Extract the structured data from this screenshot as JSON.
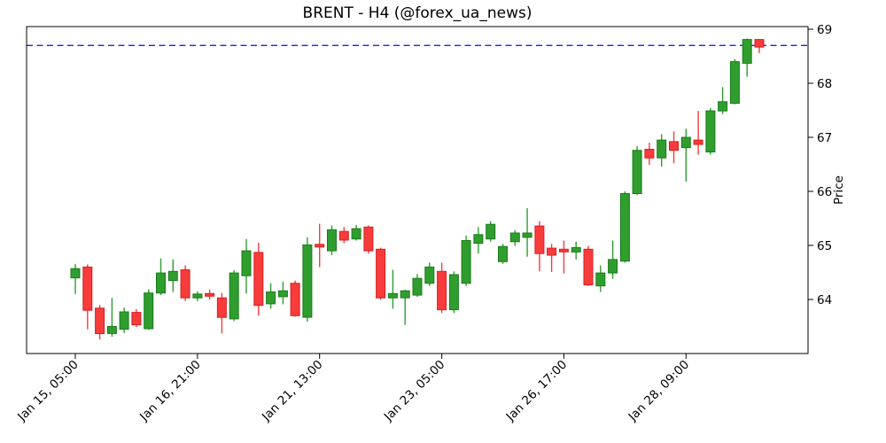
{
  "title": "BRENT - H4 (@forex_ua_news)",
  "chart_data": {
    "type": "candlestick",
    "title": "BRENT - H4 (@forex_ua_news)",
    "ylabel": "Price",
    "ylabel_side": "right",
    "ylim": [
      63.0,
      69.05
    ],
    "yticks": [
      64,
      65,
      66,
      67,
      68,
      69
    ],
    "grid": false,
    "hline": 68.7,
    "hline_style": "dashed",
    "xticks": [
      {
        "index": 0,
        "label": "Jan 15, 05:00"
      },
      {
        "index": 10,
        "label": "Jan 16, 21:00"
      },
      {
        "index": 20,
        "label": "Jan 21, 13:00"
      },
      {
        "index": 30,
        "label": "Jan 23, 05:00"
      },
      {
        "index": 40,
        "label": "Jan 26, 17:00"
      },
      {
        "index": 50,
        "label": "Jan 28, 09:00"
      }
    ],
    "colors": {
      "up": "#2f9e2f",
      "up_edge": "#1a7a1a",
      "down": "#f83b3b",
      "down_edge": "#d32222",
      "hline": "#1f1fff",
      "axis": "#000000",
      "background": "#ffffff"
    },
    "ohlc_order": [
      "open",
      "high",
      "low",
      "close"
    ],
    "candles": [
      [
        64.4,
        64.66,
        64.1,
        64.57
      ],
      [
        64.6,
        64.65,
        63.45,
        63.8
      ],
      [
        63.84,
        63.9,
        63.26,
        63.37
      ],
      [
        63.37,
        64.03,
        63.31,
        63.5
      ],
      [
        63.45,
        63.85,
        63.38,
        63.77
      ],
      [
        63.76,
        63.82,
        63.49,
        63.53
      ],
      [
        63.46,
        64.19,
        63.44,
        64.12
      ],
      [
        64.12,
        64.76,
        64.08,
        64.49
      ],
      [
        64.35,
        64.74,
        64.14,
        64.52
      ],
      [
        64.55,
        64.63,
        63.97,
        64.03
      ],
      [
        64.03,
        64.15,
        63.97,
        64.1
      ],
      [
        64.11,
        64.18,
        64.0,
        64.06
      ],
      [
        64.03,
        64.12,
        63.37,
        63.67
      ],
      [
        63.64,
        64.54,
        63.6,
        64.49
      ],
      [
        64.44,
        65.12,
        64.11,
        64.9
      ],
      [
        64.87,
        65.05,
        63.7,
        63.89
      ],
      [
        63.92,
        64.3,
        63.83,
        64.14
      ],
      [
        64.05,
        64.33,
        63.91,
        64.16
      ],
      [
        64.3,
        64.35,
        63.68,
        63.7
      ],
      [
        63.67,
        65.15,
        63.59,
        65.01
      ],
      [
        65.02,
        65.4,
        64.6,
        64.97
      ],
      [
        64.9,
        65.37,
        64.82,
        65.29
      ],
      [
        65.26,
        65.34,
        65.04,
        65.1
      ],
      [
        65.12,
        65.38,
        65.09,
        65.31
      ],
      [
        65.34,
        65.37,
        64.85,
        64.9
      ],
      [
        64.93,
        64.96,
        64.0,
        64.03
      ],
      [
        64.03,
        64.55,
        63.83,
        64.11
      ],
      [
        64.03,
        64.18,
        63.53,
        64.16
      ],
      [
        64.08,
        64.47,
        64.05,
        64.39
      ],
      [
        64.3,
        64.68,
        64.25,
        64.6
      ],
      [
        64.52,
        64.68,
        63.75,
        63.81
      ],
      [
        63.81,
        64.52,
        63.75,
        64.46
      ],
      [
        64.3,
        65.18,
        64.25,
        65.09
      ],
      [
        65.04,
        65.34,
        64.85,
        65.2
      ],
      [
        65.12,
        65.45,
        65.07,
        65.39
      ],
      [
        64.7,
        65.03,
        64.66,
        64.98
      ],
      [
        65.07,
        65.28,
        64.99,
        65.23
      ],
      [
        65.15,
        65.69,
        64.79,
        65.23
      ],
      [
        65.36,
        65.45,
        64.52,
        64.85
      ],
      [
        64.95,
        65.03,
        64.51,
        64.82
      ],
      [
        64.93,
        65.09,
        64.48,
        64.88
      ],
      [
        64.88,
        65.07,
        64.74,
        64.96
      ],
      [
        64.93,
        64.99,
        64.25,
        64.27
      ],
      [
        64.25,
        64.63,
        64.14,
        64.49
      ],
      [
        64.49,
        65.09,
        64.38,
        64.74
      ],
      [
        64.71,
        66.0,
        64.68,
        65.96
      ],
      [
        65.96,
        66.84,
        65.93,
        66.76
      ],
      [
        66.78,
        66.9,
        66.49,
        66.62
      ],
      [
        66.62,
        67.06,
        66.46,
        66.95
      ],
      [
        66.92,
        67.11,
        66.52,
        66.76
      ],
      [
        66.81,
        67.16,
        66.18,
        67.0
      ],
      [
        66.95,
        67.49,
        66.68,
        66.87
      ],
      [
        66.73,
        67.54,
        66.68,
        67.49
      ],
      [
        67.49,
        67.93,
        67.43,
        67.66
      ],
      [
        67.63,
        68.45,
        67.61,
        68.4
      ],
      [
        68.37,
        68.83,
        68.12,
        68.81
      ],
      [
        68.81,
        68.82,
        68.56,
        68.67
      ]
    ]
  }
}
